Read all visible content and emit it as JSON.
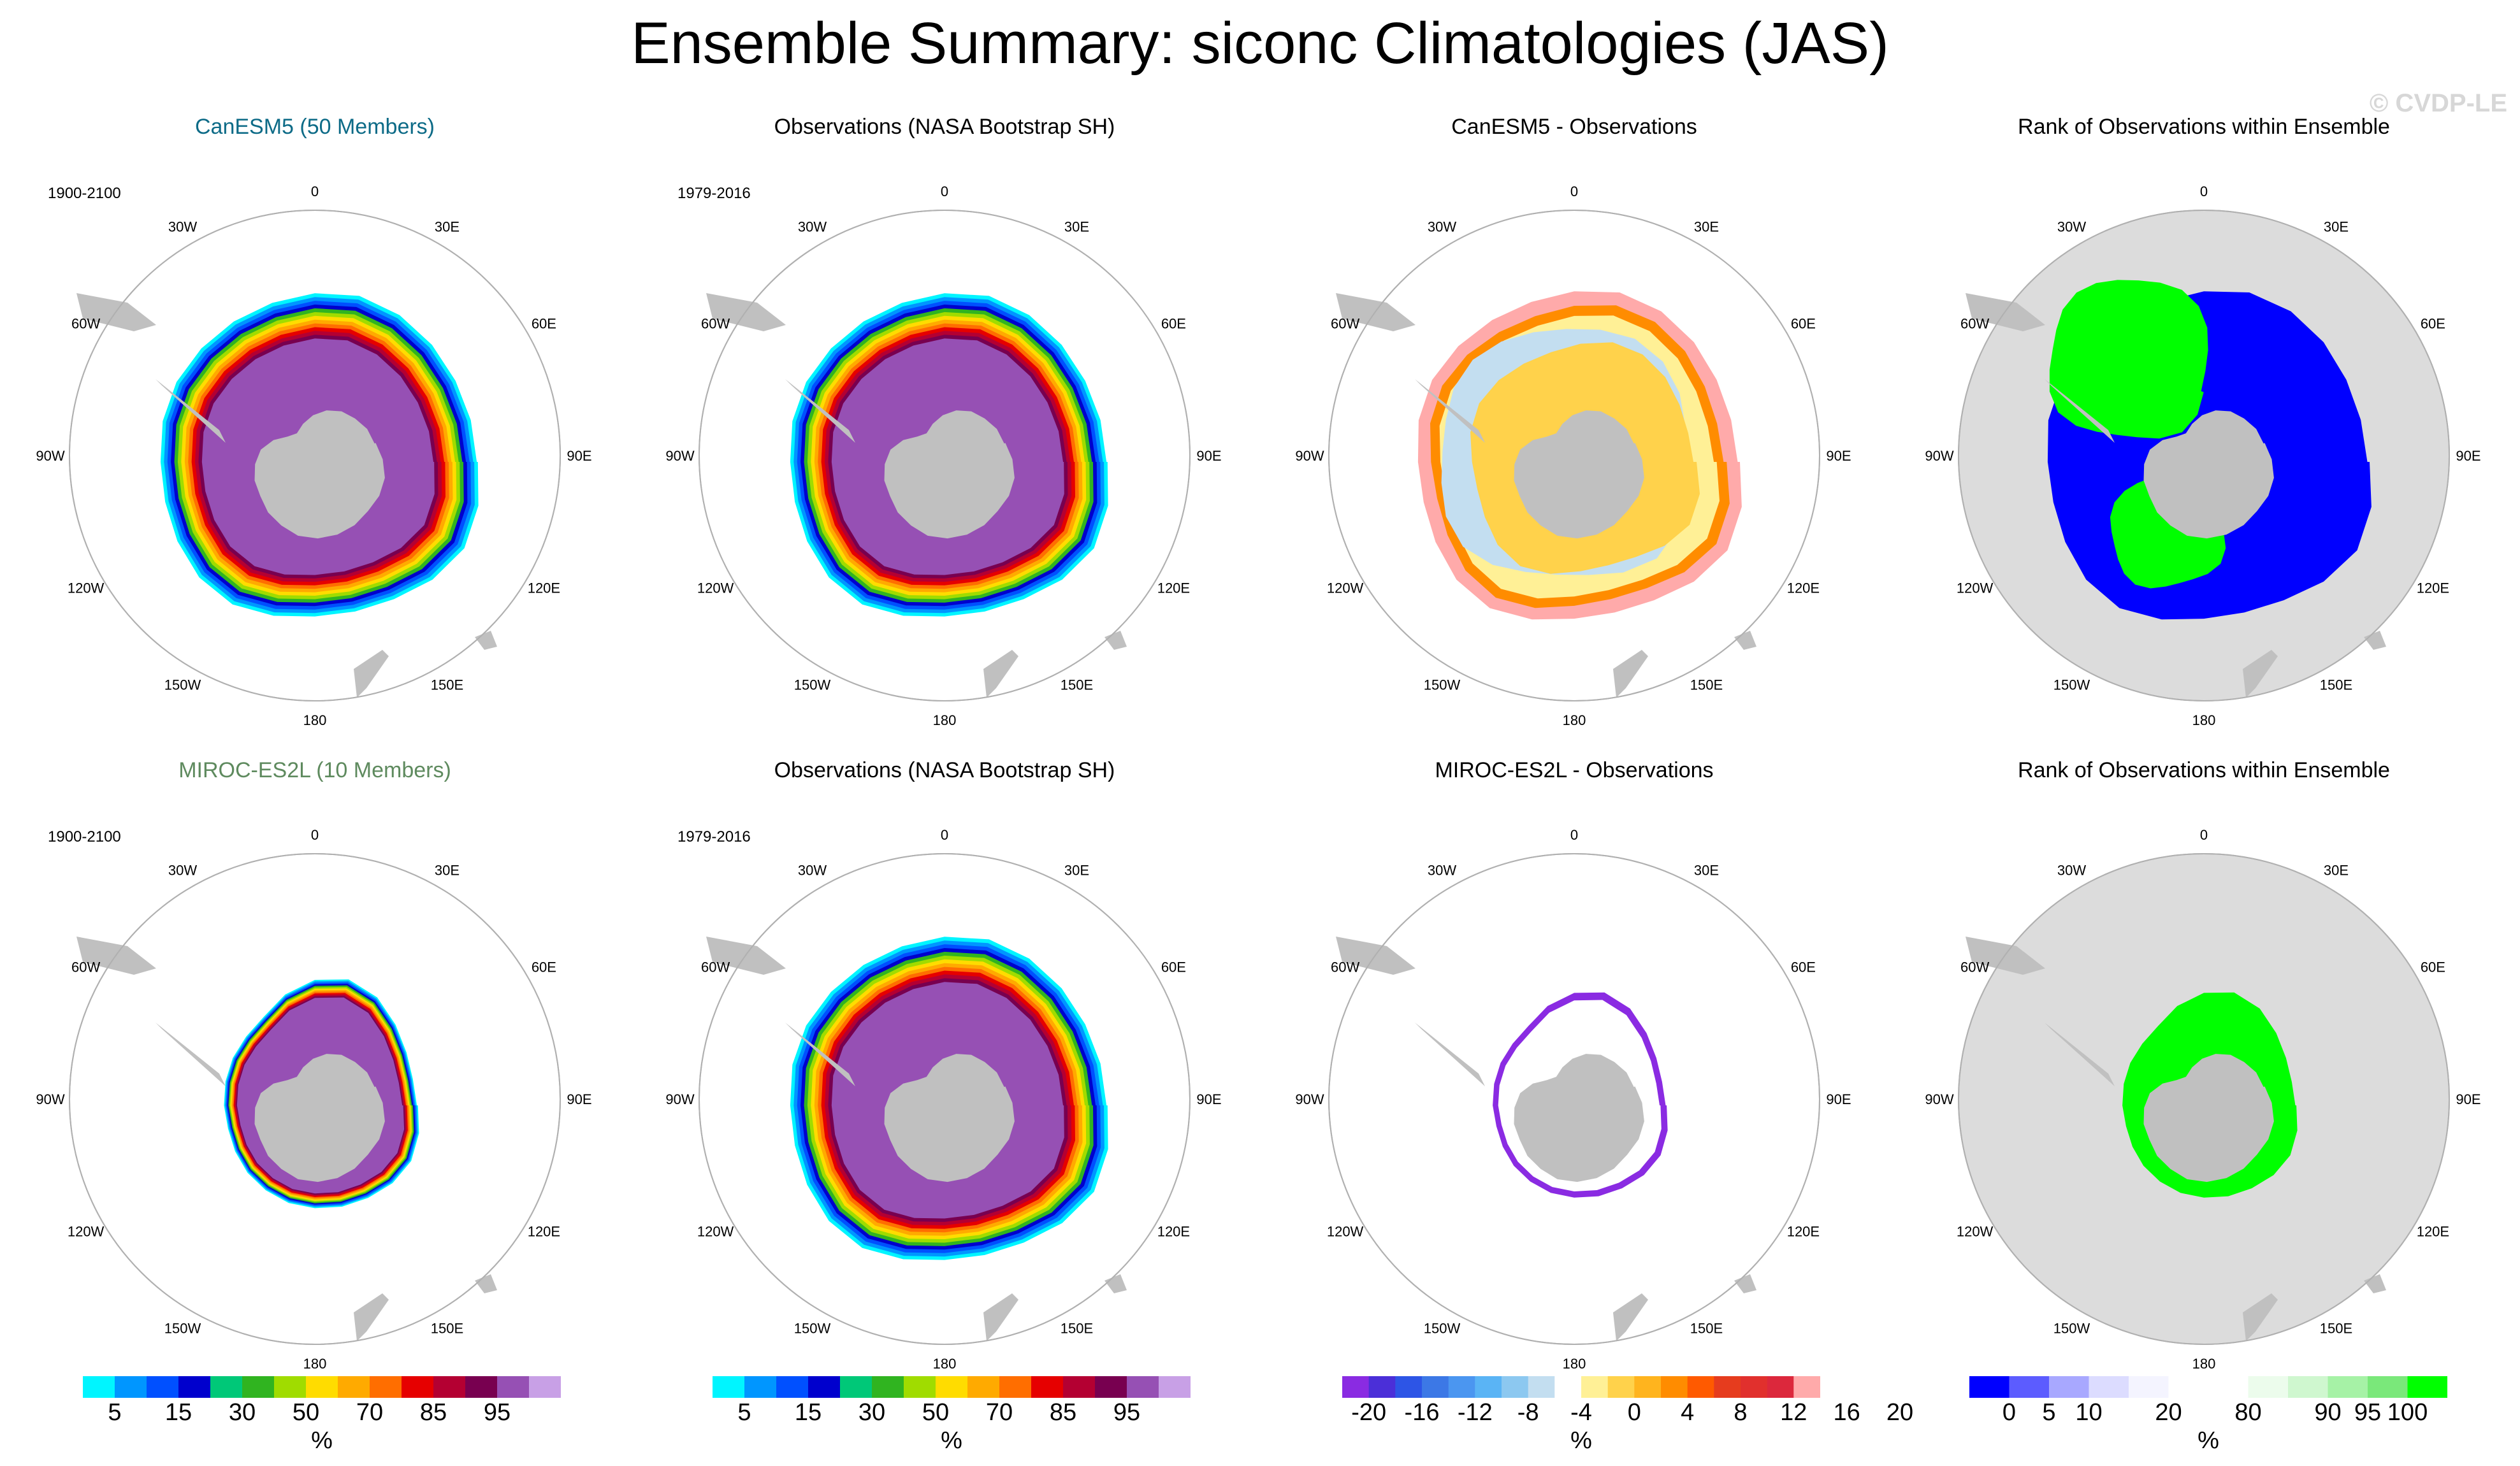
{
  "title": "Ensemble Summary: siconc Climatologies (JAS)",
  "watermark": "© CVDP-LE",
  "lon_labels": [
    "0",
    "30E",
    "60E",
    "90E",
    "120E",
    "150E",
    "180",
    "150W",
    "120W",
    "90W",
    "60W",
    "30W"
  ],
  "colors": {
    "ocean": "#ffffff",
    "land": "#c0c0c0",
    "rank_background": "#dcdcdc",
    "grid_ring": "#b0b0b0",
    "title_teal": "#0d6b87",
    "title_green": "#5e8a5e"
  },
  "panels": [
    {
      "title": "CanESM5 (50 Members)",
      "title_color": "#0d6b87",
      "period": "1900-2100",
      "kind": "model",
      "size": "large"
    },
    {
      "title": "Observations (NASA Bootstrap SH)",
      "title_color": "#000000",
      "period": "1979-2016",
      "kind": "obs",
      "size": "large"
    },
    {
      "title": "CanESM5 - Observations",
      "title_color": "#000000",
      "period": "",
      "kind": "diff",
      "size": "large"
    },
    {
      "title": "Rank of Observations within Ensemble",
      "title_color": "#000000",
      "period": "",
      "kind": "rank",
      "size": "large"
    },
    {
      "title": "MIROC-ES2L (10 Members)",
      "title_color": "#5e8a5e",
      "period": "1900-2100",
      "kind": "model",
      "size": "small"
    },
    {
      "title": "Observations (NASA Bootstrap SH)",
      "title_color": "#000000",
      "period": "1979-2016",
      "kind": "obs",
      "size": "large"
    },
    {
      "title": "MIROC-ES2L - Observations",
      "title_color": "#000000",
      "period": "",
      "kind": "diff",
      "size": "small"
    },
    {
      "title": "Rank of Observations within Ensemble",
      "title_color": "#000000",
      "period": "",
      "kind": "rank",
      "size": "small"
    }
  ],
  "colorbars": [
    {
      "unit": "%",
      "colors": [
        "#00f5ff",
        "#0096ff",
        "#0050ff",
        "#0000cd",
        "#00c878",
        "#30b420",
        "#a0dc00",
        "#ffdc00",
        "#ffaa00",
        "#ff6e00",
        "#e60000",
        "#b40032",
        "#780050",
        "#9650b4",
        "#c8a0e6"
      ],
      "tick_labels": [
        "5",
        "15",
        "30",
        "50",
        "70",
        "85",
        "95"
      ],
      "tick_boundaries": [
        1,
        3,
        5,
        7,
        9,
        11,
        13
      ]
    },
    {
      "unit": "%",
      "colors": [
        "#00f5ff",
        "#0096ff",
        "#0050ff",
        "#0000cd",
        "#00c878",
        "#30b420",
        "#a0dc00",
        "#ffdc00",
        "#ffaa00",
        "#ff6e00",
        "#e60000",
        "#b40032",
        "#780050",
        "#9650b4",
        "#c8a0e6"
      ],
      "tick_labels": [
        "5",
        "15",
        "30",
        "50",
        "70",
        "85",
        "95"
      ],
      "tick_boundaries": [
        1,
        3,
        5,
        7,
        9,
        11,
        13
      ]
    },
    {
      "unit": "%",
      "colors": [
        "#8a2be2",
        "#4b2fd8",
        "#2d55e6",
        "#3c78e6",
        "#4b96f0",
        "#5ab4f5",
        "#8cc8f0",
        "#c3def0",
        "#ffffff",
        "#fff096",
        "#ffd24b",
        "#ffb41e",
        "#ff8c00",
        "#ff5a00",
        "#e63c1e",
        "#e1302d",
        "#dc283c",
        "#ffaaaa"
      ],
      "tick_labels": [
        "-20",
        "-16",
        "-12",
        "-8",
        "-4",
        "0",
        "4",
        "8",
        "12",
        "16",
        "20"
      ],
      "tick_boundaries": [
        1,
        3,
        5,
        7,
        9,
        11,
        13,
        15,
        17,
        19,
        21
      ]
    },
    {
      "unit": "%",
      "colors": [
        "#0000ff",
        "#5c5cff",
        "#a8a8ff",
        "#dcdcff",
        "#f4f4ff",
        "#ffffff",
        "#ffffff",
        "#ecfcec",
        "#cff7cf",
        "#a6f2a6",
        "#7ae87a",
        "#00ff00"
      ],
      "tick_labels": [
        "0",
        "5",
        "10",
        "20",
        "80",
        "90",
        "95",
        "100"
      ],
      "tick_boundaries": [
        1,
        2,
        3,
        5,
        7,
        9,
        10,
        11
      ]
    }
  ]
}
